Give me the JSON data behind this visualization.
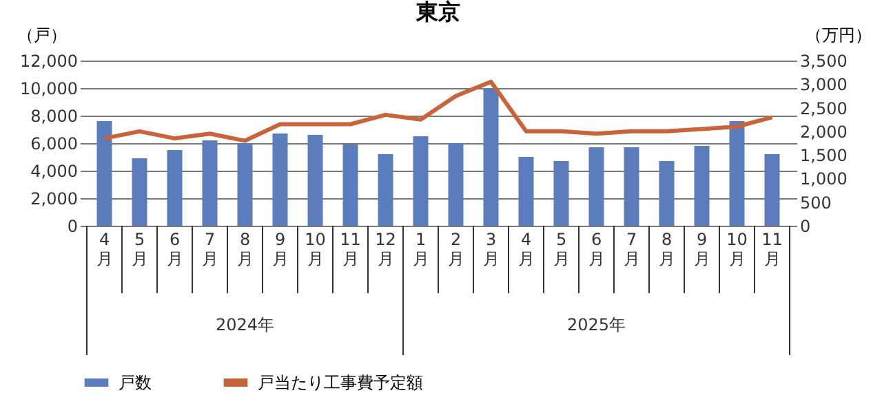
{
  "chart_data": {
    "type": "bar",
    "title": "東京",
    "ylabel": "（戸）",
    "y2label": "（万円）",
    "categories": [
      "4月",
      "5月",
      "6月",
      "7月",
      "8月",
      "9月",
      "10月",
      "11月",
      "12月",
      "1月",
      "2月",
      "3月",
      "4月",
      "5月",
      "6月",
      "7月",
      "8月",
      "9月",
      "10月",
      "11月"
    ],
    "series": [
      {
        "name": "戸数",
        "color": "#5b7dbd",
        "values": [
          7600,
          4900,
          5500,
          6200,
          6000,
          6700,
          6600,
          5900,
          5200,
          6500,
          6000,
          10000,
          5000,
          4700,
          5700,
          5700,
          4700,
          5800,
          7600,
          5200
        ]
      },
      {
        "name": "戸当たり工事費予定額",
        "type": "line",
        "axis": "y2",
        "color": "#c8643c",
        "values": [
          1850,
          2000,
          1850,
          1950,
          1800,
          2150,
          2150,
          2150,
          2350,
          2250,
          2750,
          3050,
          2000,
          2000,
          1950,
          2000,
          2000,
          2050,
          2100,
          2300
        ]
      }
    ],
    "ylim": [
      0,
      12000
    ],
    "yticks": [
      {
        "value": 0,
        "label": "0"
      },
      {
        "value": 2000,
        "label": "2,000"
      },
      {
        "value": 4000,
        "label": "4,000"
      },
      {
        "value": 6000,
        "label": "6,000"
      },
      {
        "value": 8000,
        "label": "8,000"
      },
      {
        "value": 10000,
        "label": "10,000"
      },
      {
        "value": 12000,
        "label": "12,000"
      }
    ],
    "y2lim": [
      0,
      3500
    ],
    "y2ticks": [
      {
        "value": 0,
        "label": "0"
      },
      {
        "value": 500,
        "label": "500"
      },
      {
        "value": 1000,
        "label": "1,000"
      },
      {
        "value": 1500,
        "label": "1,500"
      },
      {
        "value": 2000,
        "label": "2,000"
      },
      {
        "value": 2500,
        "label": "2,500"
      },
      {
        "value": 3000,
        "label": "3,000"
      },
      {
        "value": 3500,
        "label": "3,500"
      }
    ],
    "annotations": [
      "2024年",
      "2025年"
    ],
    "grid": "y",
    "legend": "bottom"
  }
}
